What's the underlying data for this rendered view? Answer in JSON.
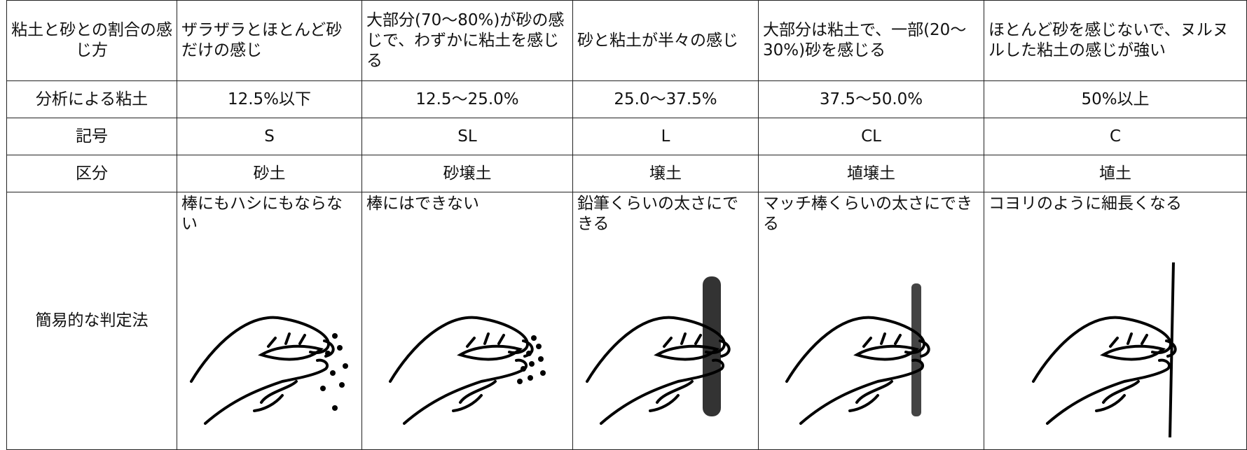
{
  "table": {
    "rows": [
      [
        "粘土と砂との割合の感じ方",
        "ザラザラとほとんど砂だけの感じ",
        "大部分(70〜80%)が砂の感じで、わずかに粘土を感じる",
        "砂と粘土が半々の感じ",
        "大部分は粘土で、一部(20〜30%)砂を感じる",
        "ほとんど砂を感じないで、ヌルヌルした粘土の感じが強い"
      ],
      [
        "分析による粘土",
        "12.5%以下",
        "12.5〜25.0%",
        "25.0〜37.5%",
        "37.5〜50.0%",
        "50%以上"
      ],
      [
        "記号",
        "S",
        "SL",
        "L",
        "CL",
        "C"
      ],
      [
        "区分",
        "砂土",
        "砂壌土",
        "壌土",
        "埴壌土",
        "埴土"
      ],
      [
        "簡易的な判定法",
        "棒にもハシにもならない",
        "棒にはできない",
        "鉛筆くらいの太さにできる",
        "マッチ棒くらいの太さにできる",
        "コヨリのように細長くなる"
      ]
    ]
  }
}
